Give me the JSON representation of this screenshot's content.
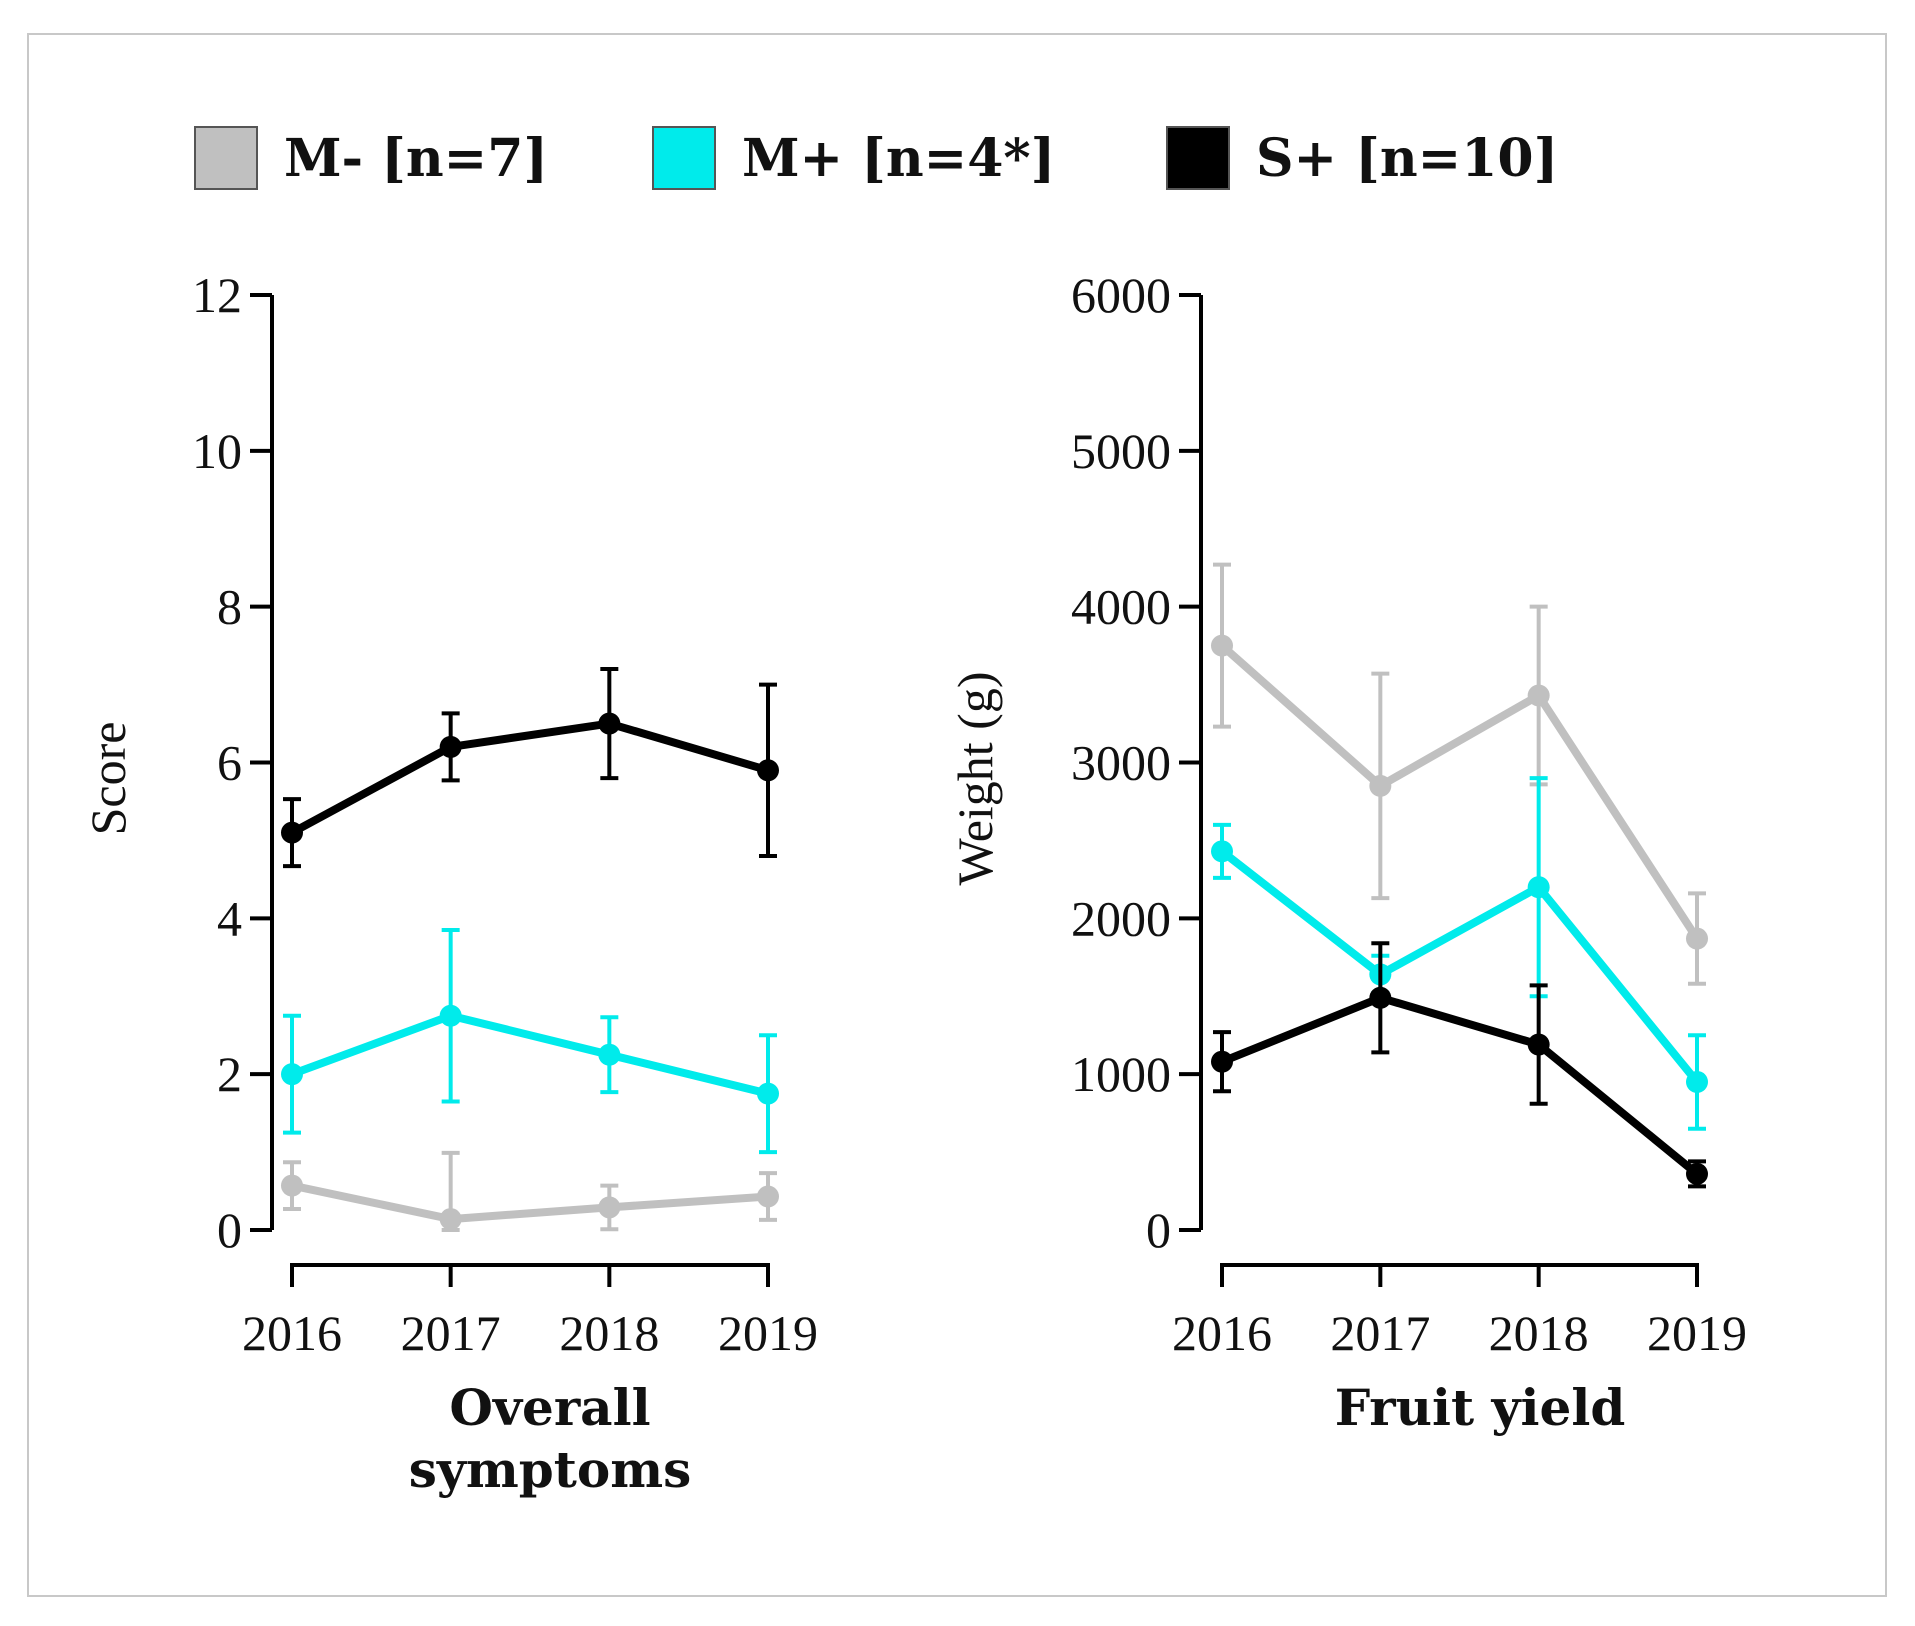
{
  "legend": [
    {
      "label": "M- [n=7]",
      "color": "#c0c0c0"
    },
    {
      "label": "M+ [n=4*]",
      "color": "#00ebeb"
    },
    {
      "label": "S+ [n=10]",
      "color": "#000000"
    }
  ],
  "chart_data": [
    {
      "type": "line",
      "title": "Overall symptoms",
      "title_lines": [
        "Overall",
        "symptoms"
      ],
      "xlabel": "",
      "ylabel": "Score",
      "x": [
        "2016",
        "2017",
        "2018",
        "2019"
      ],
      "ylim": [
        0,
        12
      ],
      "yticks": [
        0,
        2,
        4,
        6,
        8,
        10,
        12
      ],
      "grid": false,
      "series": [
        {
          "name": "M- [n=7]",
          "color": "#c0c0c0",
          "values": [
            0.57,
            0.14,
            0.29,
            0.43
          ],
          "errors": [
            0.3,
            0.85,
            0.28,
            0.3
          ]
        },
        {
          "name": "M+ [n=4*]",
          "color": "#00ebeb",
          "values": [
            2.0,
            2.75,
            2.25,
            1.75
          ],
          "errors": [
            0.75,
            1.1,
            0.48,
            0.75
          ]
        },
        {
          "name": "S+ [n=10]",
          "color": "#000000",
          "values": [
            5.1,
            6.2,
            6.5,
            5.9
          ],
          "errors": [
            0.43,
            0.43,
            0.7,
            1.1
          ]
        }
      ]
    },
    {
      "type": "line",
      "title": "Fruit yield",
      "title_lines": [
        "Fruit yield"
      ],
      "xlabel": "",
      "ylabel": "Weight (g)",
      "x": [
        "2016",
        "2017",
        "2018",
        "2019"
      ],
      "ylim": [
        0,
        6000
      ],
      "yticks": [
        0,
        1000,
        2000,
        3000,
        4000,
        5000,
        6000
      ],
      "grid": false,
      "series": [
        {
          "name": "M- [n=7]",
          "color": "#c0c0c0",
          "values": [
            3750,
            2850,
            3430,
            1870
          ],
          "errors": [
            520,
            720,
            570,
            290
          ]
        },
        {
          "name": "M+ [n=4*]",
          "color": "#00ebeb",
          "values": [
            2430,
            1640,
            2200,
            950
          ],
          "errors": [
            170,
            120,
            700,
            300
          ]
        },
        {
          "name": "S+ [n=10]",
          "color": "#000000",
          "values": [
            1080,
            1490,
            1190,
            360
          ],
          "errors": [
            190,
            350,
            380,
            80
          ]
        }
      ]
    }
  ]
}
